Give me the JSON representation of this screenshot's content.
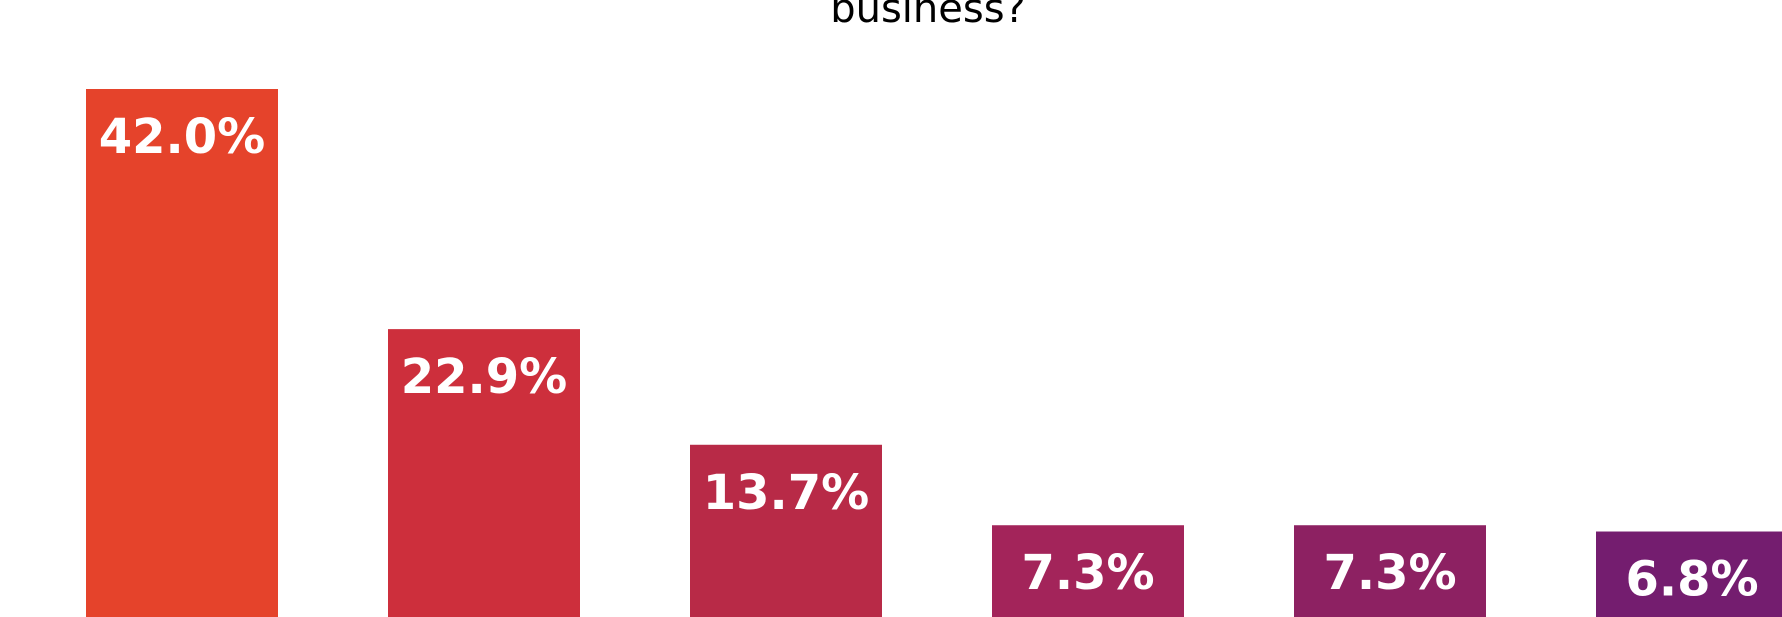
{
  "chart": {
    "title": "business?",
    "background": "#ffffff",
    "title_color": "#000000",
    "label_color": "#ffffff"
  },
  "chart_data": {
    "type": "bar",
    "title": "business?",
    "xlabel": "",
    "ylabel": "",
    "categories": [
      "",
      "",
      "",
      "",
      "",
      ""
    ],
    "values": [
      42.0,
      22.9,
      13.7,
      7.3,
      7.3,
      6.8
    ],
    "value_labels": [
      "42.0%",
      "22.9%",
      "13.7%",
      "7.3%",
      "7.3%",
      "6.8%"
    ],
    "colors": [
      "#E5432B",
      "#CD2F3C",
      "#B82A47",
      "#A3245A",
      "#8D2162",
      "#741D6F"
    ],
    "ylim": [
      0,
      42.0
    ],
    "grid": false,
    "legend": "none"
  }
}
